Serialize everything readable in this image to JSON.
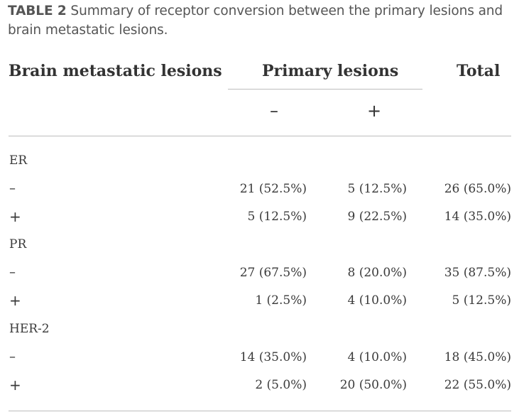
{
  "caption": {
    "label": "TABLE 2",
    "text": "Summary of receptor conversion between the primary lesions and brain metastatic lesions."
  },
  "table": {
    "headers": {
      "row_header": "Brain metastatic lesions",
      "group_header": "Primary lesions",
      "total_header": "Total",
      "sub_negative": "–",
      "sub_positive": "+"
    },
    "rows": [
      {
        "label": "ER",
        "neg": "",
        "pos": "",
        "total": ""
      },
      {
        "label": "–",
        "neg": "21 (52.5%)",
        "pos": "5 (12.5%)",
        "total": "26 (65.0%)"
      },
      {
        "label": "+",
        "neg": "5 (12.5%)",
        "pos": "9 (22.5%)",
        "total": "14 (35.0%)"
      },
      {
        "label": "PR",
        "neg": "",
        "pos": "",
        "total": ""
      },
      {
        "label": "–",
        "neg": "27 (67.5%)",
        "pos": "8 (20.0%)",
        "total": "35 (87.5%)"
      },
      {
        "label": "+",
        "neg": "1 (2.5%)",
        "pos": "4 (10.0%)",
        "total": "5 (12.5%)"
      },
      {
        "label": "HER-2",
        "neg": "",
        "pos": "",
        "total": ""
      },
      {
        "label": "–",
        "neg": "14 (35.0%)",
        "pos": "4 (10.0%)",
        "total": "18 (45.0%)"
      },
      {
        "label": "+",
        "neg": "2 (5.0%)",
        "pos": "20 (50.0%)",
        "total": "22 (55.0%)"
      }
    ]
  }
}
